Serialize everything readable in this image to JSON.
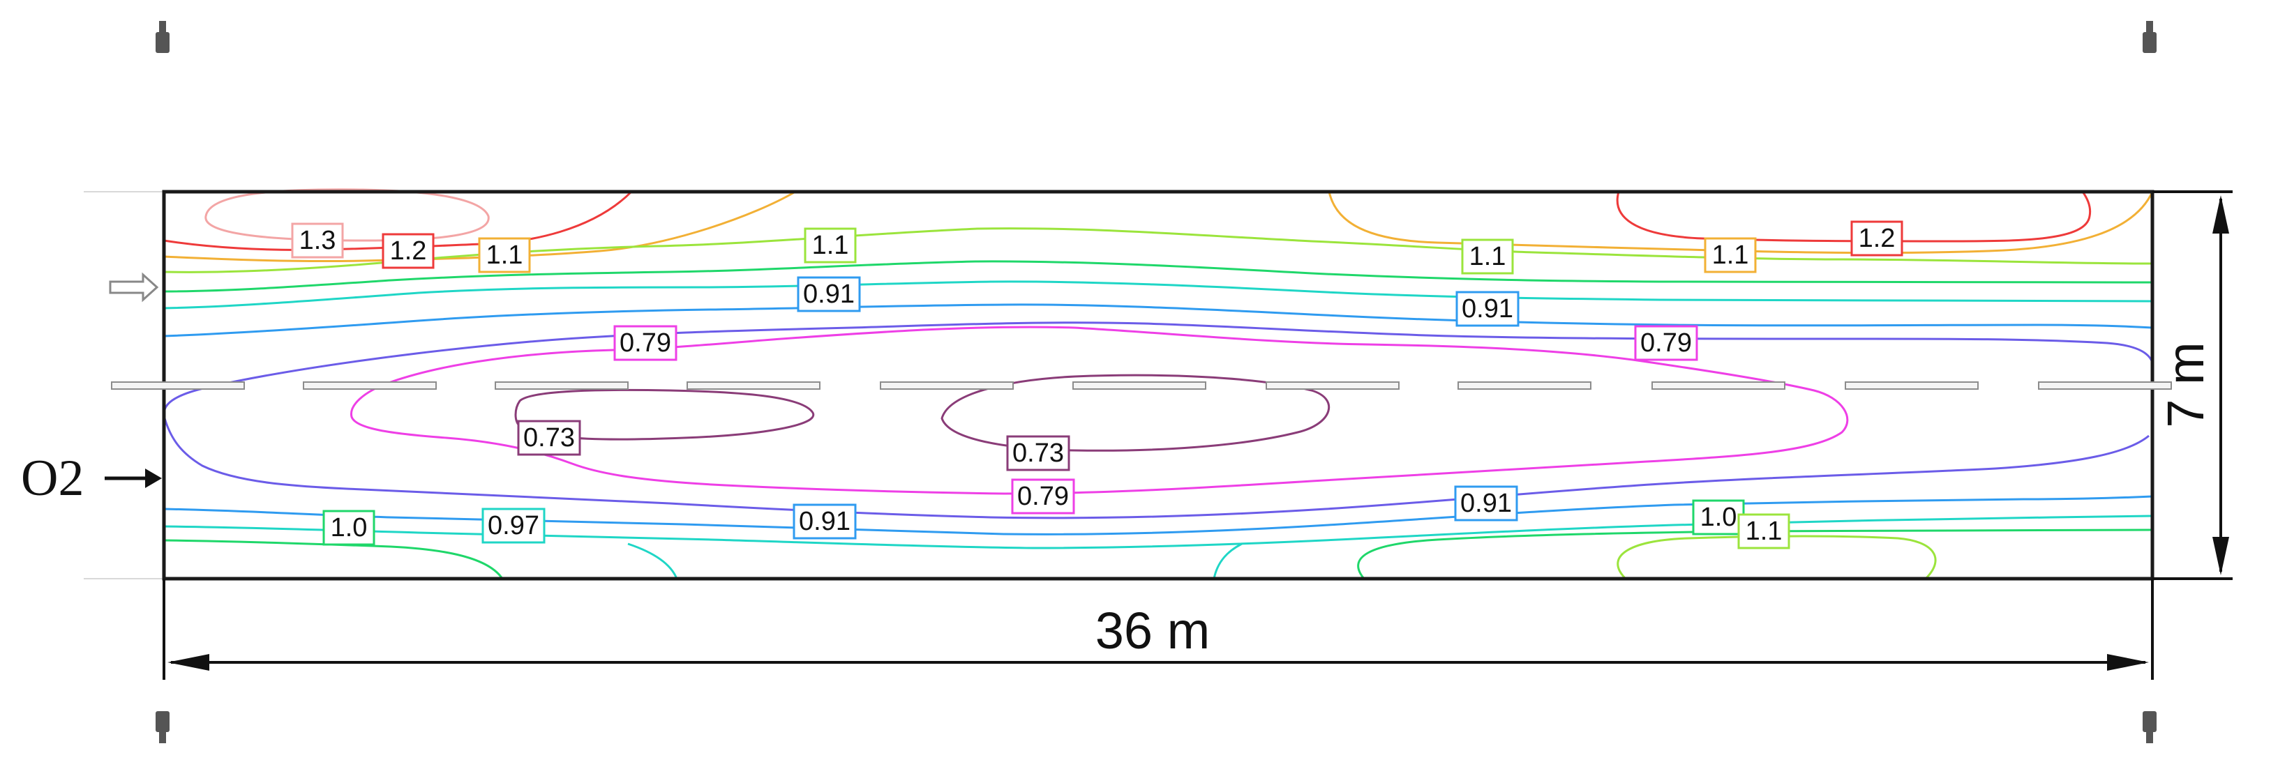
{
  "diagram": {
    "length_label": "36 m",
    "width_label": "7 m",
    "inlet_label": "O2",
    "colors": {
      "c13": "#f3a5a5",
      "c12": "#ee3a3a",
      "c11": "#9be43c",
      "c11b": "#f2b035",
      "c10": "#1fd76a",
      "c097": "#1fd6c6",
      "c091": "#2f9bf0",
      "c085": "#6b5ce8",
      "c079": "#ee3fe6",
      "c073": "#8a3c78"
    }
  },
  "contour_labels": [
    {
      "id": "l1",
      "text": "1.3",
      "color": "c13"
    },
    {
      "id": "l2",
      "text": "1.2",
      "color": "c12"
    },
    {
      "id": "l3",
      "text": "1.1",
      "color": "c11b"
    },
    {
      "id": "l4",
      "text": "1.1",
      "color": "c11"
    },
    {
      "id": "l5",
      "text": "1.1",
      "color": "c11"
    },
    {
      "id": "l6",
      "text": "1.1",
      "color": "c11b"
    },
    {
      "id": "l7",
      "text": "1.2",
      "color": "c12"
    },
    {
      "id": "l8",
      "text": "0.91",
      "color": "c091"
    },
    {
      "id": "l9",
      "text": "0.91",
      "color": "c091"
    },
    {
      "id": "l10",
      "text": "0.79",
      "color": "c079"
    },
    {
      "id": "l11",
      "text": "0.79",
      "color": "c079"
    },
    {
      "id": "l12",
      "text": "0.73",
      "color": "c073"
    },
    {
      "id": "l13",
      "text": "0.73",
      "color": "c073"
    },
    {
      "id": "l14",
      "text": "0.79",
      "color": "c079"
    },
    {
      "id": "l15",
      "text": "1.0",
      "color": "c10"
    },
    {
      "id": "l16",
      "text": "0.97",
      "color": "c097"
    },
    {
      "id": "l17",
      "text": "0.91",
      "color": "c091"
    },
    {
      "id": "l18",
      "text": "0.91",
      "color": "c091"
    },
    {
      "id": "l19",
      "text": "1.0",
      "color": "c10"
    },
    {
      "id": "l20",
      "text": "1.1",
      "color": "c11"
    }
  ]
}
